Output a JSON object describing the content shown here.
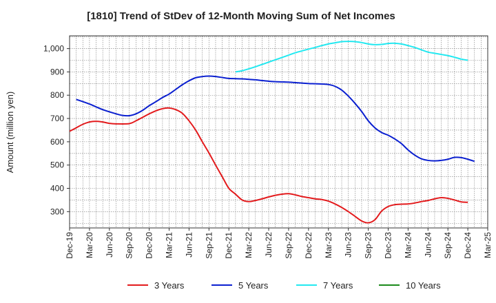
{
  "chart_data": {
    "type": "line",
    "title": "[1810]  Trend of StDev of 12-Month Moving Sum of Net Incomes",
    "ylabel": "Amount (million yen)",
    "xlabel": "",
    "ylim": [
      230,
      1055
    ],
    "yticks": [
      300,
      400,
      500,
      600,
      700,
      800,
      900,
      1000
    ],
    "ytick_labels": [
      "300",
      "400",
      "500",
      "600",
      "700",
      "800",
      "900",
      "1,000"
    ],
    "x_tick_labels": [
      "Dec-19",
      "Mar-20",
      "Jun-20",
      "Sep-20",
      "Dec-20",
      "Mar-21",
      "Jun-21",
      "Sep-21",
      "Dec-21",
      "Mar-22",
      "Jun-22",
      "Sep-22",
      "Dec-22",
      "Mar-23",
      "Jun-23",
      "Sep-23",
      "Dec-23",
      "Mar-24",
      "Jun-24",
      "Sep-24",
      "Dec-24",
      "Mar-25"
    ],
    "grid": true,
    "legend_position": "bottom",
    "series": [
      {
        "name": "3 Years",
        "color": "#e31a1c",
        "points": [
          [
            0,
            645
          ],
          [
            1,
            660
          ],
          [
            2,
            675
          ],
          [
            3,
            685
          ],
          [
            4,
            688
          ],
          [
            5,
            685
          ],
          [
            6,
            679
          ],
          [
            7,
            677
          ],
          [
            9,
            678
          ],
          [
            10,
            690
          ],
          [
            11,
            705
          ],
          [
            12,
            720
          ],
          [
            13,
            733
          ],
          [
            14,
            742
          ],
          [
            15,
            745
          ],
          [
            16,
            738
          ],
          [
            17,
            722
          ],
          [
            18,
            690
          ],
          [
            19,
            650
          ],
          [
            20,
            600
          ],
          [
            21,
            552
          ],
          [
            22,
            500
          ],
          [
            23,
            450
          ],
          [
            24,
            400
          ],
          [
            25,
            375
          ],
          [
            26,
            350
          ],
          [
            27,
            343
          ],
          [
            28,
            348
          ],
          [
            29,
            355
          ],
          [
            30,
            363
          ],
          [
            31,
            370
          ],
          [
            32,
            375
          ],
          [
            33,
            377
          ],
          [
            34,
            372
          ],
          [
            35,
            365
          ],
          [
            36,
            360
          ],
          [
            37,
            355
          ],
          [
            38,
            352
          ],
          [
            39,
            345
          ],
          [
            40,
            333
          ],
          [
            41,
            318
          ],
          [
            42,
            300
          ],
          [
            43,
            280
          ],
          [
            44,
            260
          ],
          [
            45,
            252
          ],
          [
            46,
            265
          ],
          [
            47,
            302
          ],
          [
            48,
            322
          ],
          [
            49,
            330
          ],
          [
            50,
            332
          ],
          [
            51,
            333
          ],
          [
            52,
            337
          ],
          [
            53,
            343
          ],
          [
            54,
            348
          ],
          [
            55,
            355
          ],
          [
            56,
            360
          ],
          [
            57,
            357
          ],
          [
            58,
            350
          ],
          [
            59,
            342
          ],
          [
            60,
            340
          ]
        ]
      },
      {
        "name": "5 Years",
        "color": "#0a1fd0",
        "points": [
          [
            1,
            782
          ],
          [
            3,
            762
          ],
          [
            5,
            738
          ],
          [
            7,
            720
          ],
          [
            8,
            713
          ],
          [
            9,
            712
          ],
          [
            10,
            720
          ],
          [
            11,
            735
          ],
          [
            12,
            755
          ],
          [
            13,
            772
          ],
          [
            14,
            790
          ],
          [
            15,
            805
          ],
          [
            16,
            825
          ],
          [
            17,
            845
          ],
          [
            18,
            862
          ],
          [
            19,
            875
          ],
          [
            20,
            880
          ],
          [
            21,
            882
          ],
          [
            22,
            880
          ],
          [
            23,
            876
          ],
          [
            24,
            872
          ],
          [
            25,
            871
          ],
          [
            26,
            870
          ],
          [
            27,
            868
          ],
          [
            28,
            866
          ],
          [
            29,
            863
          ],
          [
            30,
            860
          ],
          [
            31,
            858
          ],
          [
            32,
            857
          ],
          [
            33,
            856
          ],
          [
            34,
            854
          ],
          [
            35,
            852
          ],
          [
            36,
            850
          ],
          [
            37,
            849
          ],
          [
            38,
            848
          ],
          [
            39,
            846
          ],
          [
            40,
            838
          ],
          [
            41,
            822
          ],
          [
            42,
            796
          ],
          [
            43,
            765
          ],
          [
            44,
            730
          ],
          [
            45,
            690
          ],
          [
            46,
            660
          ],
          [
            47,
            640
          ],
          [
            48,
            628
          ],
          [
            49,
            612
          ],
          [
            50,
            592
          ],
          [
            51,
            565
          ],
          [
            52,
            543
          ],
          [
            53,
            527
          ],
          [
            54,
            520
          ],
          [
            55,
            518
          ],
          [
            56,
            520
          ],
          [
            57,
            525
          ],
          [
            58,
            533
          ],
          [
            59,
            532
          ],
          [
            60,
            525
          ],
          [
            61,
            516
          ]
        ]
      },
      {
        "name": "7 Years",
        "color": "#22e8f0",
        "points": [
          [
            25,
            900
          ],
          [
            26,
            905
          ],
          [
            27,
            913
          ],
          [
            28,
            922
          ],
          [
            29,
            932
          ],
          [
            30,
            942
          ],
          [
            31,
            952
          ],
          [
            32,
            962
          ],
          [
            33,
            972
          ],
          [
            34,
            982
          ],
          [
            35,
            990
          ],
          [
            36,
            998
          ],
          [
            37,
            1005
          ],
          [
            38,
            1013
          ],
          [
            39,
            1020
          ],
          [
            40,
            1025
          ],
          [
            41,
            1030
          ],
          [
            42,
            1031
          ],
          [
            43,
            1030
          ],
          [
            44,
            1026
          ],
          [
            45,
            1020
          ],
          [
            46,
            1017
          ],
          [
            47,
            1018
          ],
          [
            48,
            1022
          ],
          [
            49,
            1023
          ],
          [
            50,
            1020
          ],
          [
            51,
            1013
          ],
          [
            52,
            1005
          ],
          [
            53,
            995
          ],
          [
            54,
            985
          ],
          [
            55,
            980
          ],
          [
            56,
            975
          ],
          [
            57,
            970
          ],
          [
            58,
            963
          ],
          [
            59,
            955
          ],
          [
            60,
            950
          ]
        ]
      },
      {
        "name": "10 Years",
        "color": "#1a8a1a",
        "points": []
      }
    ]
  }
}
